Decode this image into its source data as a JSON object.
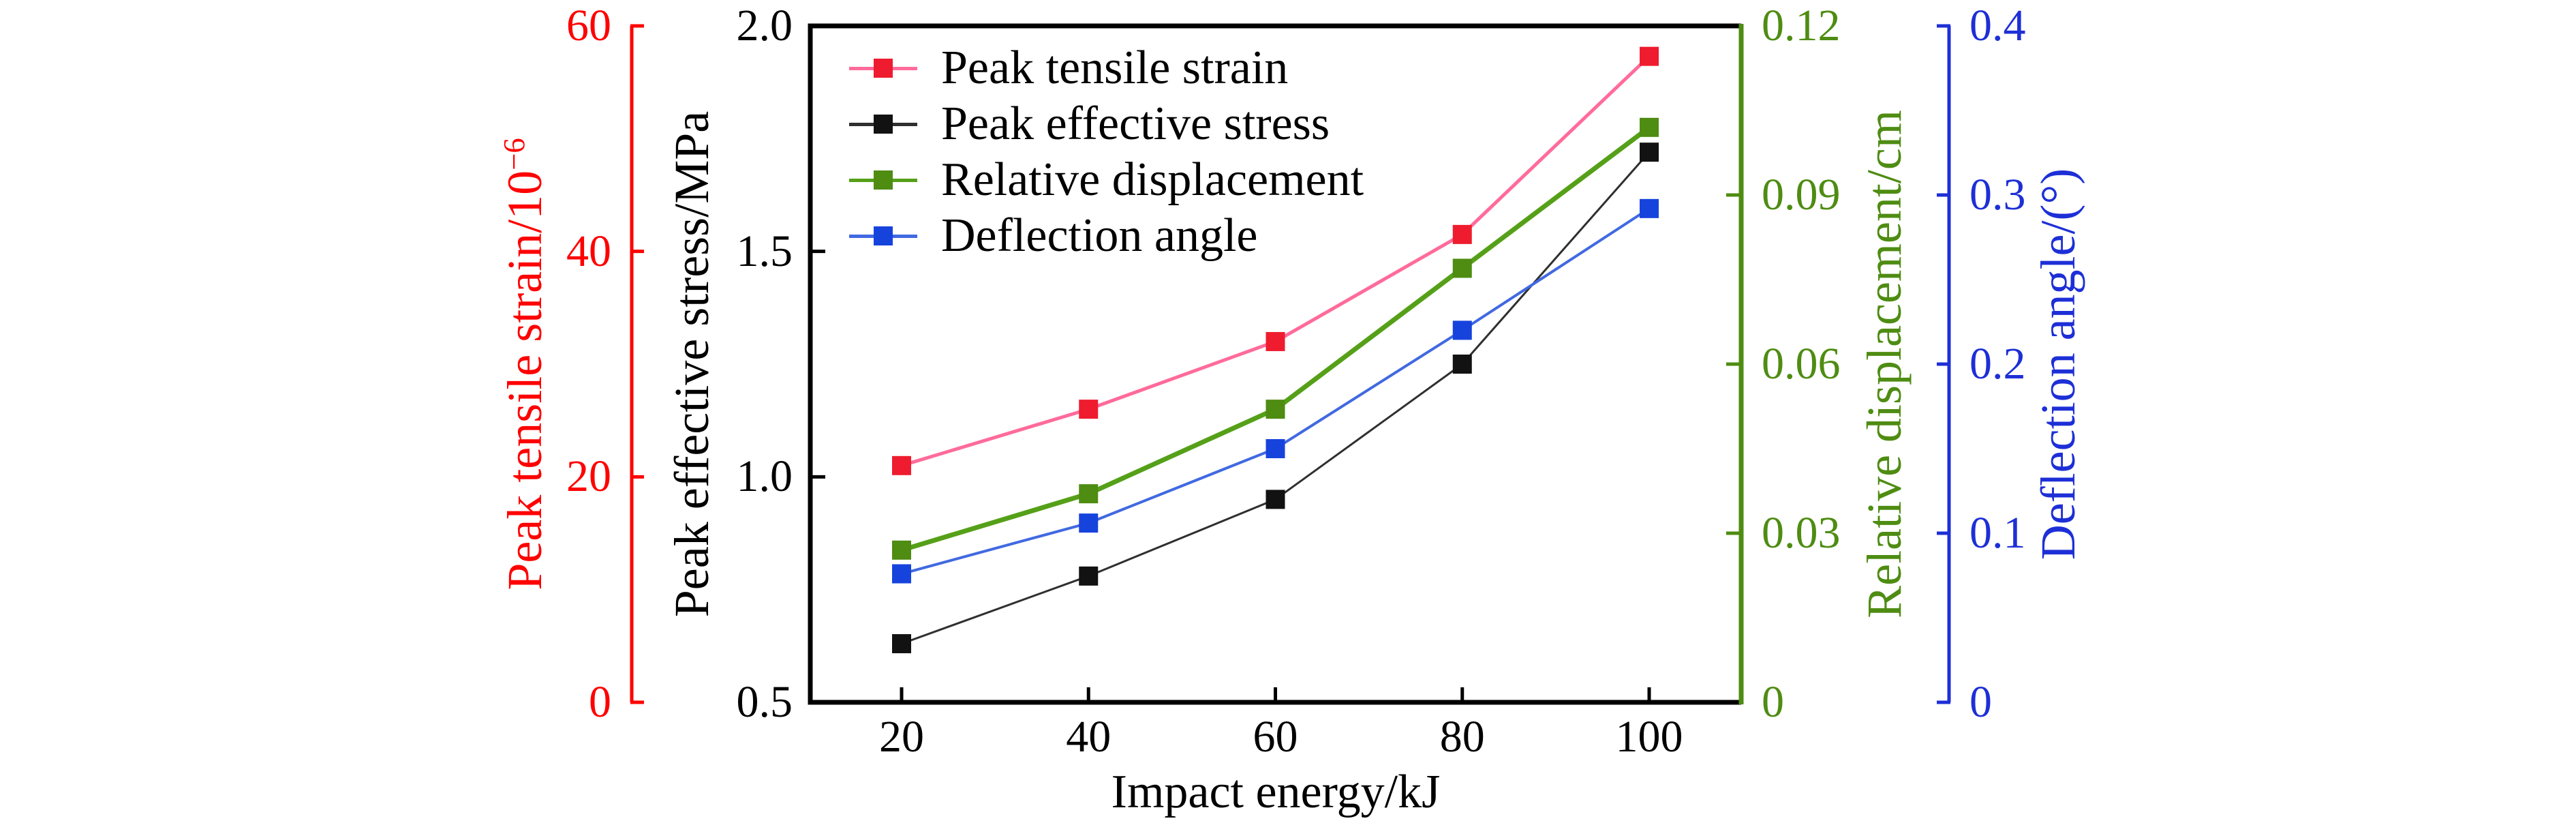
{
  "figure": {
    "background": "#ffffff"
  },
  "chart_data": {
    "type": "line",
    "x": [
      20,
      40,
      60,
      80,
      100
    ],
    "x_label": "Impact energy/kJ",
    "x_ticks": [
      "20",
      "40",
      "60",
      "80",
      "100"
    ],
    "grid": false,
    "legend_position": "top-left-inside",
    "series": [
      {
        "name": "Peak tensile strain",
        "axis": "strain",
        "values": [
          21,
          26,
          32,
          41.5,
          57.3
        ],
        "marker": "square",
        "marker_color": "#ee1c2e",
        "line_color": "#ff6b9b",
        "line_width": 5
      },
      {
        "name": "Peak effective stress",
        "axis": "stress",
        "values": [
          0.63,
          0.78,
          0.95,
          1.25,
          1.72
        ],
        "marker": "square",
        "marker_color": "#121212",
        "line_color": "#2f2f2f",
        "line_width": 3
      },
      {
        "name": "Relative displacement",
        "axis": "displacement",
        "values": [
          0.027,
          0.037,
          0.052,
          0.077,
          0.102
        ],
        "marker": "square",
        "marker_color": "#4e8c12",
        "line_color": "#55a018",
        "line_width": 7
      },
      {
        "name": "Deflection angle",
        "axis": "angle",
        "values": [
          0.076,
          0.106,
          0.15,
          0.22,
          0.292
        ],
        "marker": "square",
        "marker_color": "#1743dd",
        "line_color": "#4169e1",
        "line_width": 4
      }
    ],
    "axes": {
      "strain": {
        "label_main": "Peak tensile strain/10",
        "label_sup": "−6",
        "color": "#ff0000",
        "range": [
          0,
          60
        ],
        "ticks": [
          "0",
          "20",
          "40",
          "60"
        ],
        "tick_values": [
          0,
          20,
          40,
          60
        ],
        "side": "outer-left"
      },
      "stress": {
        "label": "Peak effective stress/MPa",
        "color": "#000000",
        "range": [
          0.5,
          2.0
        ],
        "ticks": [
          "0.5",
          "1.0",
          "1.5",
          "2.0"
        ],
        "tick_values": [
          0.5,
          1.0,
          1.5,
          2.0
        ],
        "side": "inner-left"
      },
      "displacement": {
        "label": "Relative displacement/cm",
        "color": "#4e8c12",
        "range": [
          0,
          0.12
        ],
        "ticks": [
          "0",
          "0.03",
          "0.06",
          "0.09",
          "0.12"
        ],
        "tick_values": [
          0,
          0.03,
          0.06,
          0.09,
          0.12
        ],
        "side": "inner-right"
      },
      "angle": {
        "label": "Deflection angle/(°)",
        "color": "#1d2fd6",
        "range": [
          0,
          0.4
        ],
        "ticks": [
          "0",
          "0.1",
          "0.2",
          "0.3",
          "0.4"
        ],
        "tick_values": [
          0,
          0.1,
          0.2,
          0.3,
          0.4
        ],
        "side": "outer-right"
      }
    },
    "legend": [
      "Peak tensile strain",
      "Peak effective stress",
      "Relative displacement",
      "Deflection angle"
    ]
  }
}
